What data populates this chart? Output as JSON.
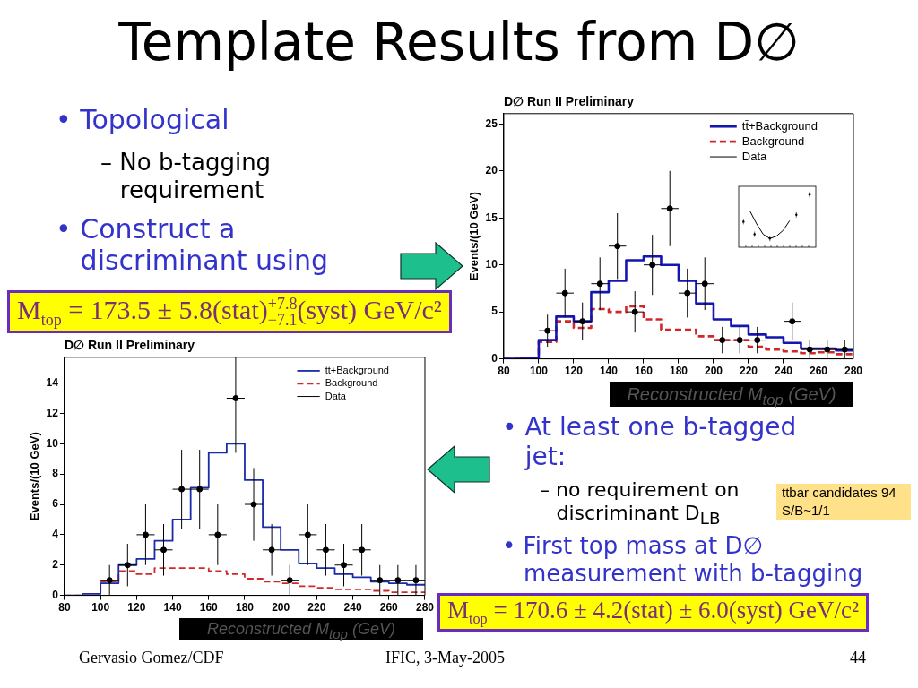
{
  "chart_data": [
    {
      "type": "other",
      "title": "Template Results from D∅",
      "annotations": [
        "• Topological",
        "– No b-tagging requirement",
        "• Construct a discriminant using",
        "M$_{top}$ = 173.5 ± 5.8(stat)$^{+7.8}$$_{−7.1}$(syst) GeV/c²",
        "• At least one b-tagged jet:",
        "– no requirement on discriminant D$_{LB}$",
        "ttbar candidates 94",
        "S/B~1/1",
        "• First top mass at D∅ measurement with b-tagging",
        "M$_{top}$ = 170.6 ± 4.2(stat) ± 6.0(syst) GeV/c²",
        "Gervasio Gomez/CDF",
        "IFIC, 3-May-2005",
        "44"
      ]
    },
    {
      "type": "histogram",
      "title": "D∅ Run II Preliminary",
      "xlabel": "Reconstructed M$_{top}$ (GeV)",
      "ylabel": "Events/(10 GeV)",
      "bins": [
        80,
        90,
        100,
        110,
        120,
        130,
        140,
        150,
        160,
        170,
        180,
        190,
        200,
        210,
        220,
        230,
        240,
        250,
        260,
        270,
        280
      ],
      "series": [
        {
          "name": "tt̄+Background",
          "color": "#1515b0",
          "values": [
            0,
            0.1,
            2.0,
            4.5,
            4.0,
            7.1,
            8.3,
            10.5,
            10.9,
            10.0,
            8.3,
            5.9,
            4.2,
            3.5,
            2.6,
            2.3,
            1.7,
            1.1,
            1.1,
            0.9
          ]
        },
        {
          "name": "Background",
          "color": "#d02828",
          "line_style": "dashed",
          "values": [
            0,
            0,
            1.8,
            4.0,
            3.3,
            5.3,
            5.0,
            5.6,
            4.2,
            3.1,
            3.1,
            2.4,
            2.0,
            2.0,
            1.3,
            1.0,
            0.8,
            0.6,
            0.7,
            0.5
          ]
        },
        {
          "name": "Data",
          "type": "scatter",
          "color": "#000000",
          "marker": "circle",
          "x": [
            105,
            115,
            125,
            135,
            145,
            155,
            165,
            175,
            185,
            195,
            205,
            215,
            225,
            245,
            255,
            265,
            275
          ],
          "values": [
            3,
            7,
            4,
            8,
            12,
            5,
            10,
            16,
            7,
            8,
            2,
            2,
            2,
            4,
            1,
            1,
            1
          ],
          "errors": [
            1.7,
            2.6,
            2,
            2.8,
            3.5,
            2.2,
            3.2,
            4,
            2.6,
            2.8,
            1.4,
            1.4,
            1.4,
            2,
            1,
            1,
            1
          ],
          "xerrors": [
            5,
            5,
            5,
            5,
            5,
            5,
            5,
            5,
            5,
            5,
            5,
            5,
            5,
            5,
            5,
            5,
            5
          ]
        }
      ],
      "xlim": [
        80,
        280
      ],
      "xticks": [
        80,
        100,
        120,
        140,
        160,
        180,
        200,
        220,
        240,
        260,
        280
      ],
      "ylim": [
        0,
        26.1
      ],
      "yticks": [
        0,
        5,
        10,
        15,
        20,
        25
      ],
      "legend": "top right"
    },
    {
      "type": "histogram",
      "title": "D∅ Run II Preliminary",
      "xlabel": "Reconstructed M$_{top}$ (GeV)",
      "ylabel": "Events/(10 GeV)",
      "bins": [
        80,
        90,
        100,
        110,
        120,
        130,
        140,
        150,
        160,
        170,
        180,
        190,
        200,
        210,
        220,
        230,
        240,
        250,
        260,
        270,
        280
      ],
      "series": [
        {
          "name": "tt̄+Background",
          "color": "#1a2aa8",
          "values": [
            0,
            0.1,
            0.8,
            2.0,
            2.4,
            3.6,
            5.0,
            7.1,
            9.4,
            10.0,
            7.6,
            4.5,
            3.0,
            2.1,
            1.8,
            1.4,
            1.2,
            0.9,
            0.8,
            0.7
          ]
        },
        {
          "name": "Background",
          "color": "#d02828",
          "line_style": "dashed",
          "values": [
            0,
            0,
            0.9,
            1.6,
            1.4,
            1.8,
            1.8,
            1.8,
            1.6,
            1.4,
            1.1,
            0.9,
            0.8,
            0.6,
            0.5,
            0.4,
            0.4,
            0.3,
            0.2,
            0.2
          ]
        },
        {
          "name": "Data",
          "type": "scatter",
          "color": "#000000",
          "marker": "circle",
          "x": [
            105,
            115,
            125,
            135,
            145,
            155,
            165,
            175,
            185,
            195,
            205,
            215,
            225,
            235,
            245,
            255,
            265,
            275
          ],
          "values": [
            1,
            2,
            4,
            3,
            7,
            7,
            4,
            13,
            6,
            3,
            1,
            4,
            3,
            2,
            3,
            1,
            1,
            1
          ],
          "errors": [
            1,
            1.4,
            2,
            1.7,
            2.6,
            2.6,
            2,
            [
              9.4,
              15.7
            ],
            2.4,
            1.7,
            1,
            2,
            1.7,
            1.4,
            1.7,
            1,
            1,
            1
          ],
          "xerrors": [
            5,
            5,
            5,
            5,
            5,
            5,
            5,
            5,
            5,
            5,
            5,
            5,
            5,
            5,
            5,
            5,
            5,
            5
          ]
        }
      ],
      "xlim": [
        80,
        280
      ],
      "xticks": [
        80,
        100,
        120,
        140,
        160,
        180,
        200,
        220,
        240,
        260,
        280
      ],
      "ylim": [
        0,
        15.7
      ],
      "yticks": [
        0,
        2,
        4,
        6,
        8,
        10,
        12,
        14
      ],
      "legend": "top right"
    }
  ]
}
